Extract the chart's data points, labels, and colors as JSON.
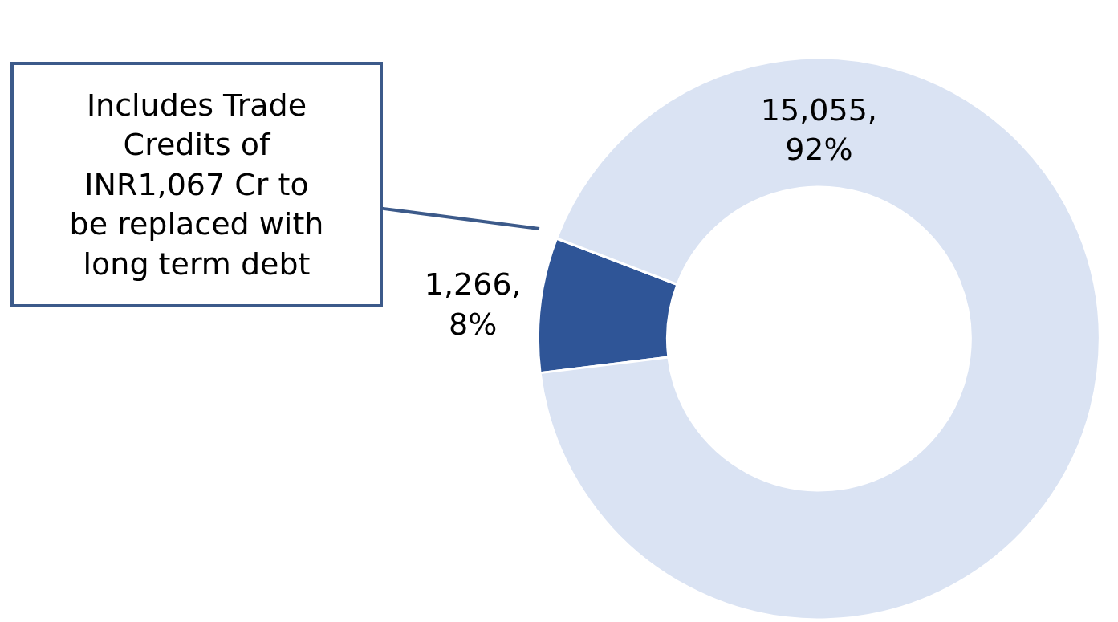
{
  "chart_data": {
    "type": "donut",
    "categories": [
      null,
      null
    ],
    "values": [
      1266,
      15055
    ],
    "colors": [
      "#2f5597",
      "#dae3f3"
    ],
    "value_labels": [
      "1,266,\n8%",
      "15,055,\n92%"
    ],
    "annotations": [
      "Includes Trade Credits of INR1,067 Cr to be replaced with long term debt"
    ],
    "legend": false
  }
}
